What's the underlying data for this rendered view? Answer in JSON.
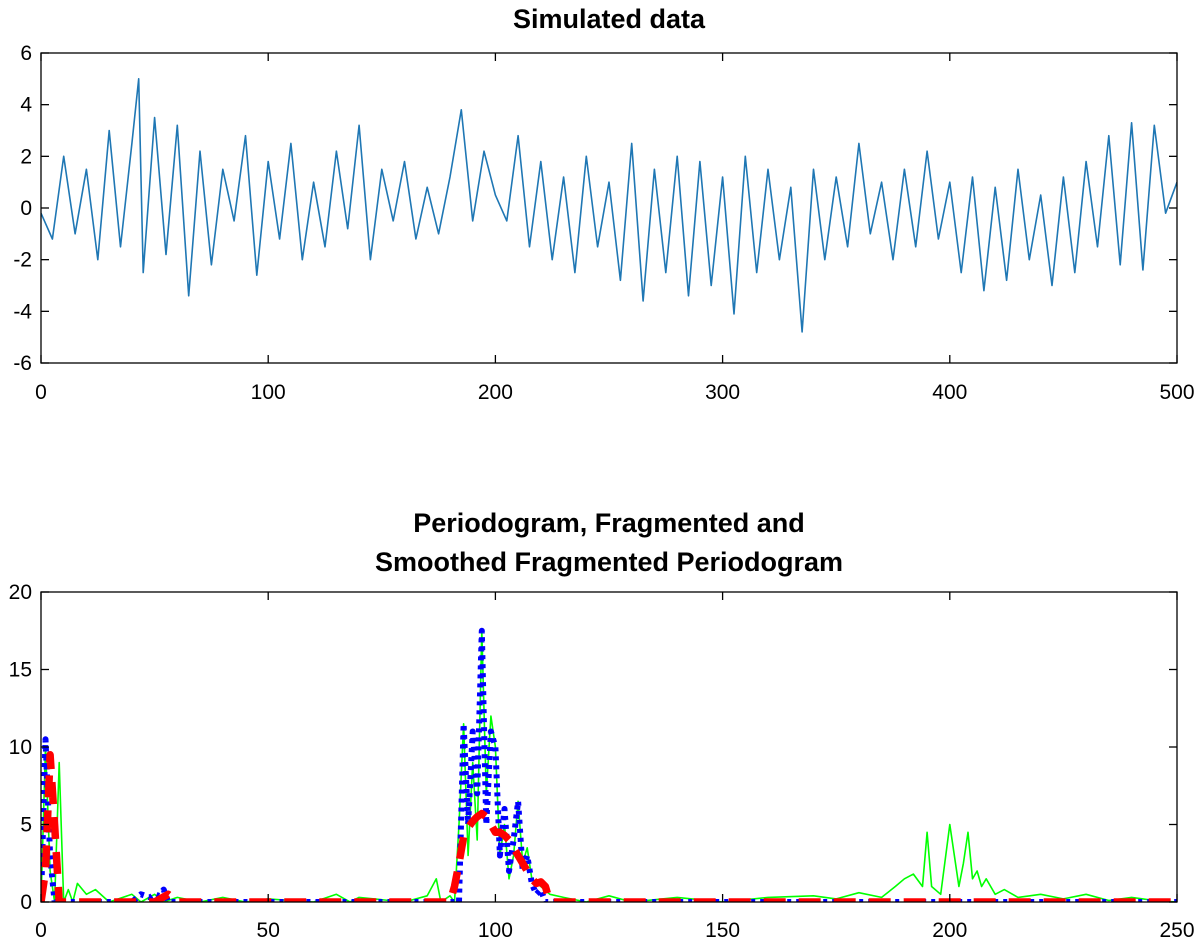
{
  "chart_data": [
    {
      "type": "line",
      "title": "Simulated data",
      "xlim": [
        0,
        500
      ],
      "ylim": [
        -6,
        6
      ],
      "xticks": [
        "0",
        "100",
        "200",
        "300",
        "400",
        "500"
      ],
      "yticks": [
        "6",
        "4",
        "2",
        "0",
        "-2",
        "-4",
        "-6"
      ],
      "grid": false,
      "series": [
        {
          "color": "#1f77b4",
          "x": [
            0,
            5,
            10,
            15,
            20,
            25,
            30,
            35,
            40,
            43,
            45,
            50,
            55,
            60,
            65,
            70,
            75,
            80,
            85,
            90,
            95,
            100,
            105,
            110,
            115,
            120,
            125,
            130,
            135,
            140,
            145,
            150,
            155,
            160,
            165,
            170,
            175,
            180,
            185,
            190,
            195,
            200,
            205,
            210,
            215,
            220,
            225,
            230,
            235,
            240,
            245,
            250,
            255,
            260,
            265,
            270,
            275,
            280,
            285,
            290,
            295,
            300,
            305,
            310,
            315,
            320,
            325,
            330,
            335,
            340,
            345,
            350,
            355,
            360,
            365,
            370,
            375,
            380,
            385,
            390,
            395,
            400,
            405,
            410,
            415,
            420,
            425,
            430,
            435,
            440,
            445,
            450,
            455,
            460,
            465,
            470,
            475,
            480,
            485,
            490,
            495,
            500
          ],
          "y": [
            -0.2,
            -1.2,
            2.0,
            -1.0,
            1.5,
            -2.0,
            3.0,
            -1.5,
            2.5,
            5.0,
            -2.5,
            3.5,
            -1.8,
            3.2,
            -3.4,
            2.2,
            -2.2,
            1.5,
            -0.5,
            2.8,
            -2.6,
            1.8,
            -1.2,
            2.5,
            -2.0,
            1.0,
            -1.5,
            2.2,
            -0.8,
            3.2,
            -2.0,
            1.5,
            -0.5,
            1.8,
            -1.2,
            0.8,
            -1.0,
            1.2,
            3.8,
            -0.5,
            2.2,
            0.5,
            -0.5,
            2.8,
            -1.5,
            1.8,
            -2.0,
            1.2,
            -2.5,
            2.0,
            -1.5,
            1.0,
            -2.8,
            2.5,
            -3.6,
            1.5,
            -2.5,
            2.0,
            -3.4,
            1.8,
            -3.0,
            1.2,
            -4.1,
            2.0,
            -2.5,
            1.5,
            -2.0,
            0.8,
            -4.8,
            1.5,
            -2.0,
            1.2,
            -1.5,
            2.5,
            -1.0,
            1.0,
            -2.0,
            1.5,
            -1.5,
            2.2,
            -1.2,
            1.0,
            -2.5,
            1.2,
            -3.2,
            0.8,
            -2.8,
            1.5,
            -2.0,
            0.5,
            -3.0,
            1.2,
            -2.5,
            1.8,
            -1.5,
            2.8,
            -2.2,
            3.3,
            -2.4,
            3.2,
            -0.2,
            1.0
          ]
        }
      ]
    },
    {
      "type": "line",
      "title": [
        "Periodogram, Fragmented and",
        "Smoothed Fragmented Periodogram"
      ],
      "xlim": [
        0,
        250
      ],
      "ylim": [
        0,
        20
      ],
      "xticks": [
        "0",
        "50",
        "100",
        "150",
        "200",
        "250"
      ],
      "yticks": [
        "20",
        "15",
        "10",
        "5",
        "0"
      ],
      "grid": false,
      "series": [
        {
          "color": "#00ff00",
          "style": "solid",
          "x": [
            0,
            1,
            2,
            3,
            4,
            5,
            6,
            7,
            8,
            10,
            12,
            15,
            20,
            22,
            25,
            27,
            30,
            35,
            40,
            45,
            50,
            60,
            65,
            68,
            70,
            80,
            85,
            87,
            88,
            90,
            91,
            92,
            93,
            94,
            95,
            96,
            97,
            98,
            99,
            100,
            101,
            102,
            103,
            104,
            105,
            106,
            107,
            108,
            110,
            112,
            115,
            120,
            125,
            130,
            140,
            150,
            160,
            170,
            175,
            180,
            185,
            188,
            190,
            192,
            194,
            195,
            196,
            198,
            200,
            202,
            203,
            204,
            205,
            206,
            207,
            208,
            210,
            212,
            215,
            220,
            225,
            230,
            235,
            240,
            245,
            250
          ],
          "y": [
            0,
            10,
            2,
            0,
            9,
            0,
            0.8,
            0,
            1.2,
            0.5,
            0.8,
            0,
            0.5,
            0,
            0.5,
            0,
            0.3,
            0,
            0.3,
            0,
            0.2,
            0,
            0.5,
            0,
            0.3,
            0,
            0.4,
            1.5,
            0,
            0.4,
            0,
            5,
            11.5,
            3,
            9,
            4,
            17.5,
            7,
            12,
            10,
            3,
            5,
            1.5,
            3,
            6.5,
            2.5,
            3.5,
            1.5,
            1,
            0.5,
            0.3,
            0,
            0.4,
            0,
            0.3,
            0,
            0.3,
            0.4,
            0.2,
            0.6,
            0.3,
            1,
            1.5,
            1.8,
            1,
            4.5,
            1,
            0.5,
            5,
            1,
            2.5,
            4.5,
            1.5,
            2,
            1,
            1.5,
            0.5,
            0.8,
            0.3,
            0.5,
            0.2,
            0.5,
            0.1,
            0.3,
            0.1,
            0
          ]
        },
        {
          "color": "#0000ff",
          "style": "dotted",
          "x": [
            0,
            1,
            2,
            3,
            4,
            20,
            22,
            24,
            25,
            26,
            27,
            28,
            30,
            90,
            91,
            92,
            93,
            94,
            95,
            96,
            97,
            98,
            99,
            100,
            101,
            102,
            103,
            104,
            105,
            106,
            107,
            108,
            109,
            110,
            111,
            250
          ],
          "y": [
            0,
            10.5,
            3,
            0,
            0,
            0,
            0.5,
            0.3,
            0.5,
            0.4,
            0.8,
            0,
            0,
            0,
            0,
            0,
            11.5,
            5,
            11,
            7,
            17.5,
            5,
            11,
            10,
            3,
            6,
            2,
            4,
            6.5,
            2,
            3,
            1.2,
            0.5,
            0.8,
            0,
            0
          ]
        },
        {
          "color": "#ff0000",
          "style": "dashed",
          "x": [
            0,
            1,
            2,
            3,
            4,
            25,
            28,
            30,
            90,
            91,
            92,
            93,
            94,
            95,
            96,
            97,
            98,
            99,
            100,
            101,
            102,
            103,
            104,
            105,
            106,
            107,
            108,
            109,
            110,
            111,
            112,
            250
          ],
          "y": [
            0,
            2,
            9.5,
            5,
            0,
            0,
            0.5,
            0,
            0,
            1,
            2.5,
            4.2,
            4.8,
            5.2,
            5.5,
            5.7,
            5.5,
            5,
            4.5,
            4.5,
            4.3,
            4,
            3.5,
            3,
            2.5,
            2,
            1.5,
            1.2,
            1.3,
            1,
            0,
            0
          ]
        }
      ]
    }
  ]
}
